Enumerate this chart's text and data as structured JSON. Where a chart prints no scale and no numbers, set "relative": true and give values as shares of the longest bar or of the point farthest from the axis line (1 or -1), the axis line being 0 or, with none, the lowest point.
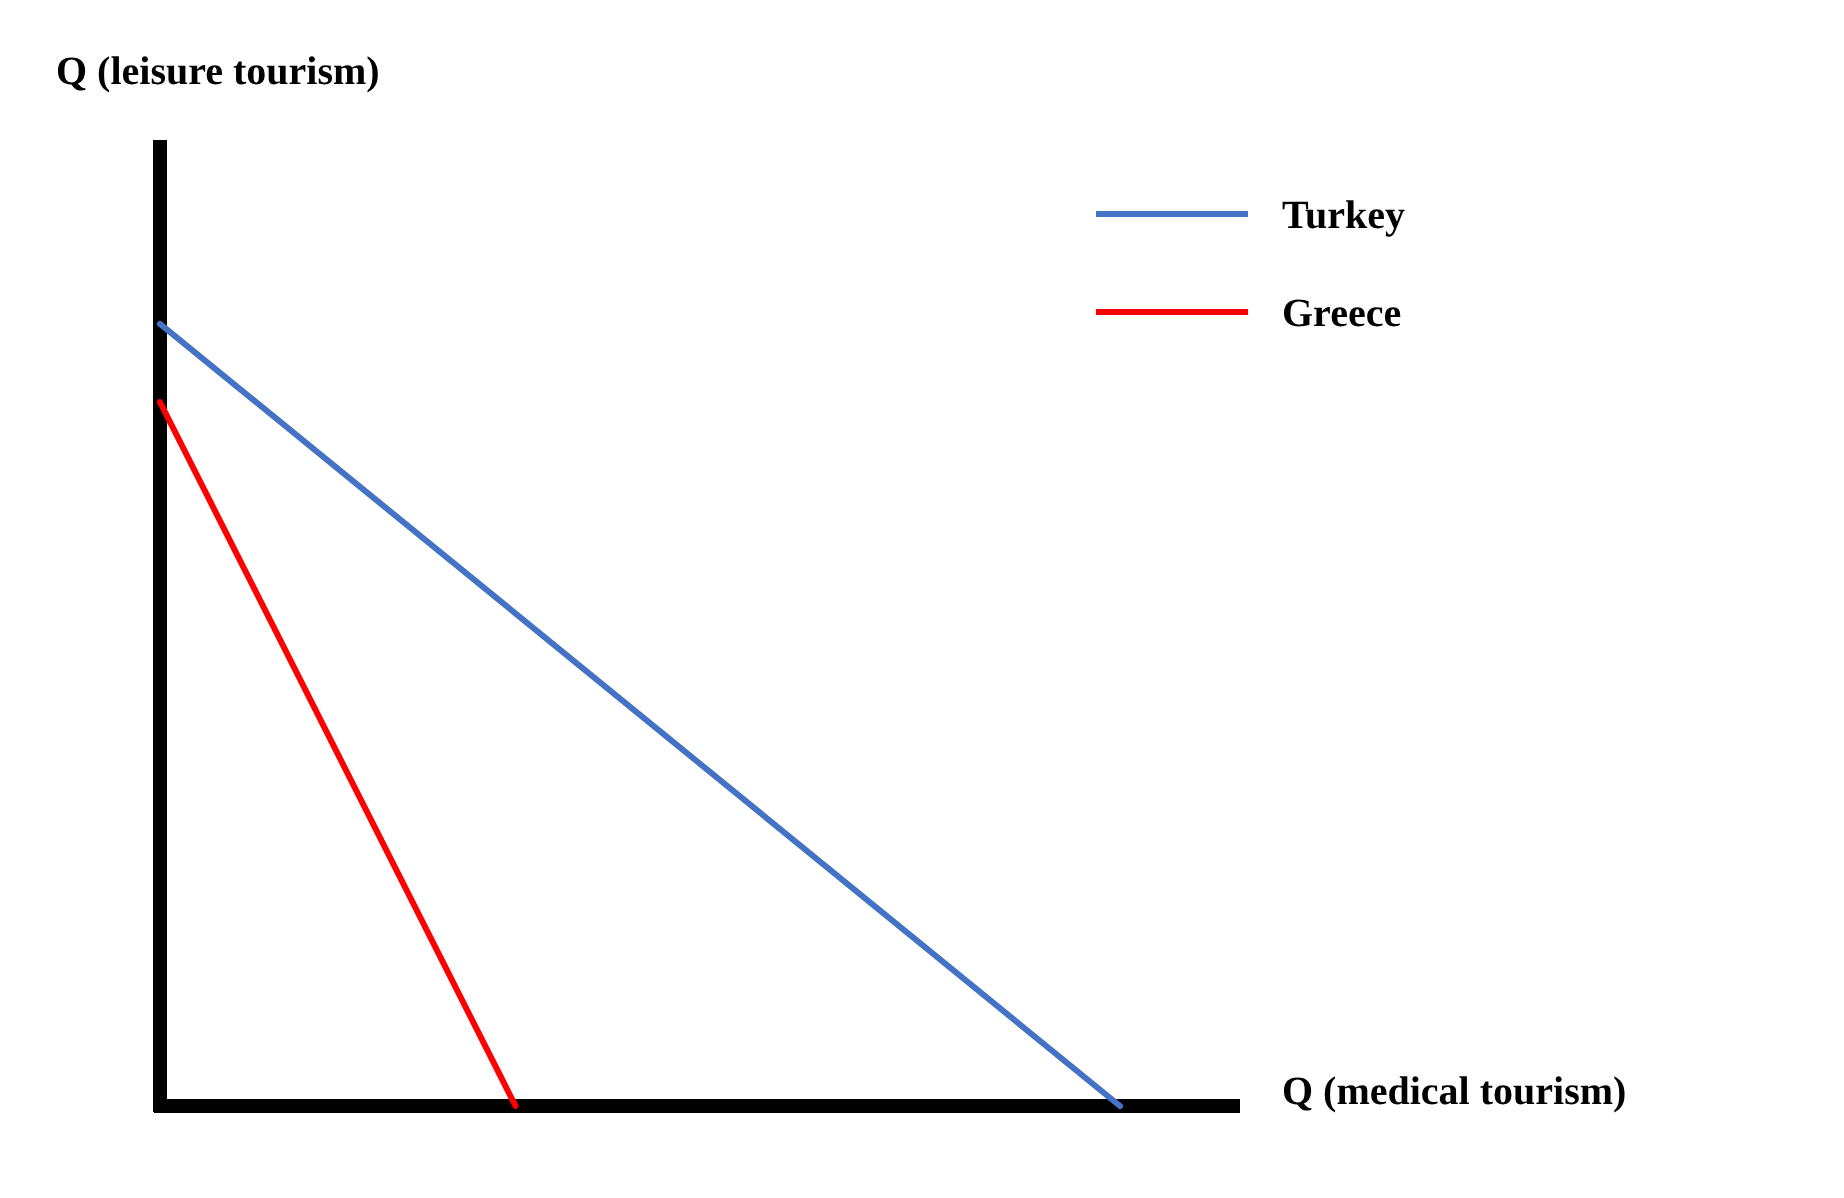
{
  "chart_data": {
    "type": "line",
    "relative": true,
    "xlabel": "Q (medical tourism)",
    "annotations": [
      "Q (leisure tourism)"
    ],
    "legend": "top right",
    "marker": "none",
    "line_style": "solid",
    "categories": [
      null,
      null,
      null,
      null,
      null,
      null,
      null,
      null,
      null,
      null,
      null,
      null,
      null,
      null,
      null,
      null,
      null,
      null,
      null,
      null,
      null,
      null,
      null,
      null,
      null,
      null,
      null,
      null
    ],
    "series": [
      {
        "name": "Turkey",
        "color": "#4472c4",
        "values": [
          1,
          null,
          null,
          null,
          null,
          null,
          null,
          null,
          null,
          null,
          null,
          null,
          null,
          null,
          null,
          null,
          null,
          null,
          null,
          null,
          null,
          null,
          null,
          null,
          null,
          null,
          null,
          0
        ]
      },
      {
        "name": "Greece",
        "color": "#ff0000",
        "values": [
          0.9,
          null,
          null,
          null,
          null,
          null,
          null,
          null,
          null,
          null,
          0,
          null,
          null,
          null,
          null,
          null,
          null,
          null,
          null,
          null,
          null,
          null,
          null,
          null,
          null,
          null,
          null,
          null
        ]
      }
    ]
  }
}
